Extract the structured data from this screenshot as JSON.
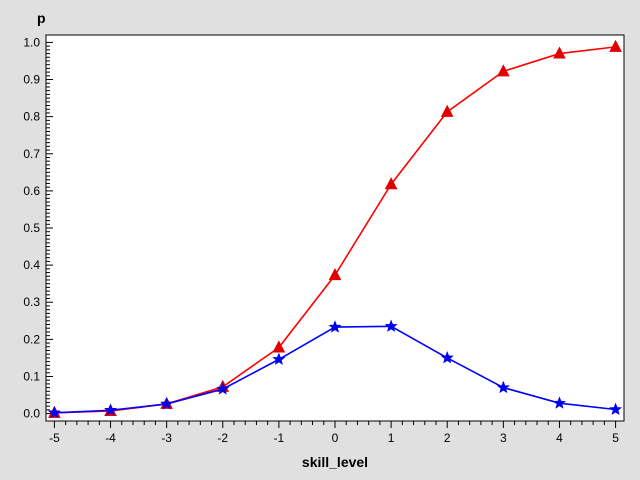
{
  "chart_data": {
    "type": "line",
    "title": "",
    "xlabel": "skill_level",
    "ylabel": "p",
    "xlim": [
      -5.15,
      5.15
    ],
    "ylim": [
      -0.02,
      1.02
    ],
    "x": [
      -5,
      -4,
      -3,
      -2,
      -1,
      0,
      1,
      2,
      3,
      4,
      5
    ],
    "x_ticks": [
      "-5",
      "-4",
      "-3",
      "-2",
      "-1",
      "0",
      "1",
      "2",
      "3",
      "4",
      "5"
    ],
    "y_ticks": [
      "0.0",
      "0.1",
      "0.2",
      "0.3",
      "0.4",
      "0.5",
      "0.6",
      "0.7",
      "0.8",
      "0.9",
      "1.0"
    ],
    "y_tick_values": [
      0,
      0.1,
      0.2,
      0.3,
      0.4,
      0.5,
      0.6,
      0.7,
      0.8,
      0.9,
      1.0
    ],
    "grid": false,
    "legend": "none",
    "series": [
      {
        "marker": "triangle",
        "color": "#ff0000",
        "marker_color": "#e00000",
        "values": [
          0.002,
          0.007,
          0.026,
          0.072,
          0.178,
          0.373,
          0.618,
          0.813,
          0.922,
          0.97,
          0.988
        ]
      },
      {
        "marker": "star",
        "color": "#0000ff",
        "marker_color": "#0000ee",
        "values": [
          0.002,
          0.009,
          0.026,
          0.066,
          0.146,
          0.233,
          0.235,
          0.15,
          0.07,
          0.028,
          0.011
        ]
      }
    ],
    "colors": {
      "background": "#e0e0e0",
      "plot_background": "#ffffff",
      "axis": "#000000"
    }
  }
}
